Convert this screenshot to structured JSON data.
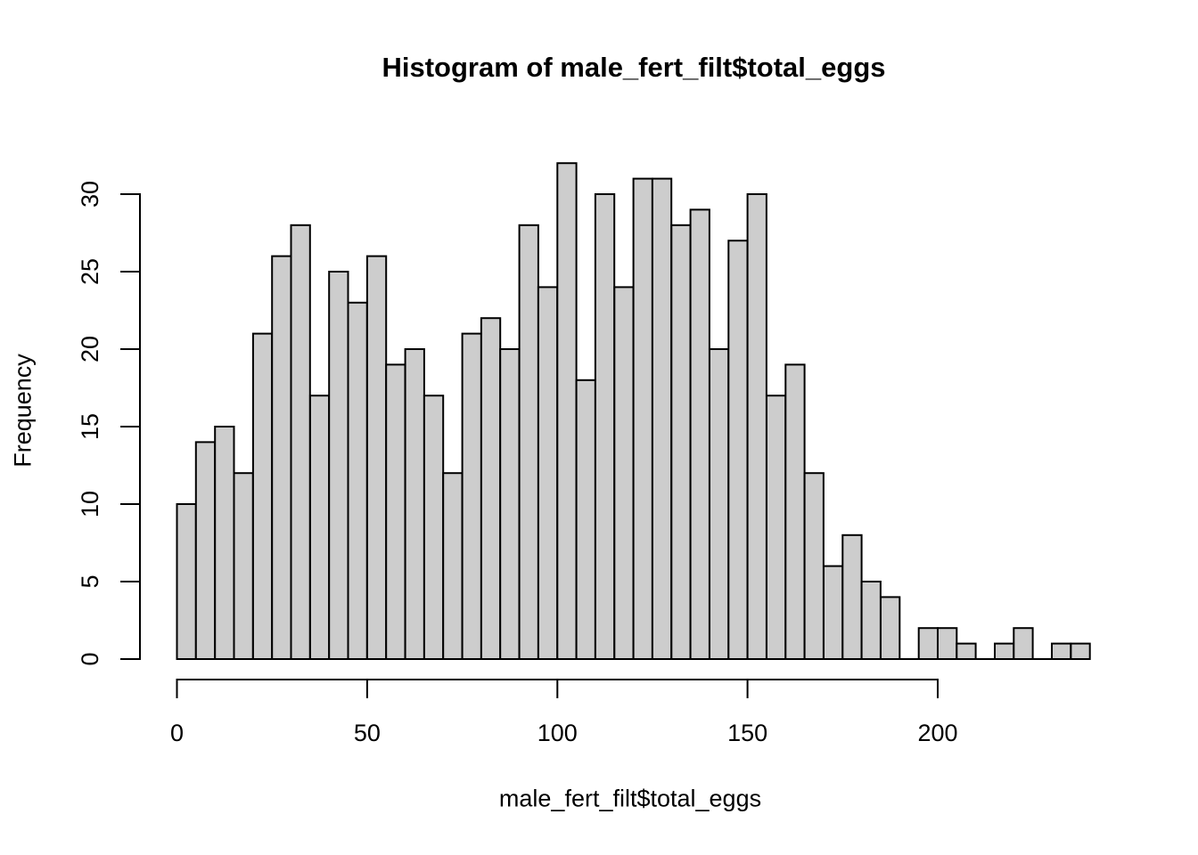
{
  "chart_data": {
    "type": "bar",
    "subtype": "histogram",
    "title": "Histogram of male_fert_filt$total_eggs",
    "xlabel": "male_fert_filt$total_eggs",
    "ylabel": "Frequency",
    "bins": {
      "start": 0,
      "width": 5,
      "end": 240
    },
    "counts": [
      10,
      14,
      15,
      12,
      21,
      26,
      28,
      17,
      25,
      23,
      26,
      19,
      20,
      17,
      12,
      21,
      22,
      20,
      28,
      24,
      32,
      18,
      30,
      24,
      31,
      31,
      28,
      29,
      20,
      27,
      30,
      17,
      19,
      12,
      6,
      8,
      5,
      4,
      0,
      2,
      2,
      1,
      0,
      1,
      2,
      0,
      1,
      1
    ],
    "x_ticks": [
      0,
      50,
      100,
      150,
      200
    ],
    "y_ticks": [
      0,
      5,
      10,
      15,
      20,
      25,
      30
    ],
    "xlim": [
      0,
      240
    ],
    "ylim": [
      0,
      32
    ],
    "grid": false,
    "legend": false,
    "bar_fill": "#cdcdcd",
    "bar_stroke": "#000000",
    "axis_color": "#000000",
    "text_color": "#000000",
    "background": "#ffffff"
  }
}
